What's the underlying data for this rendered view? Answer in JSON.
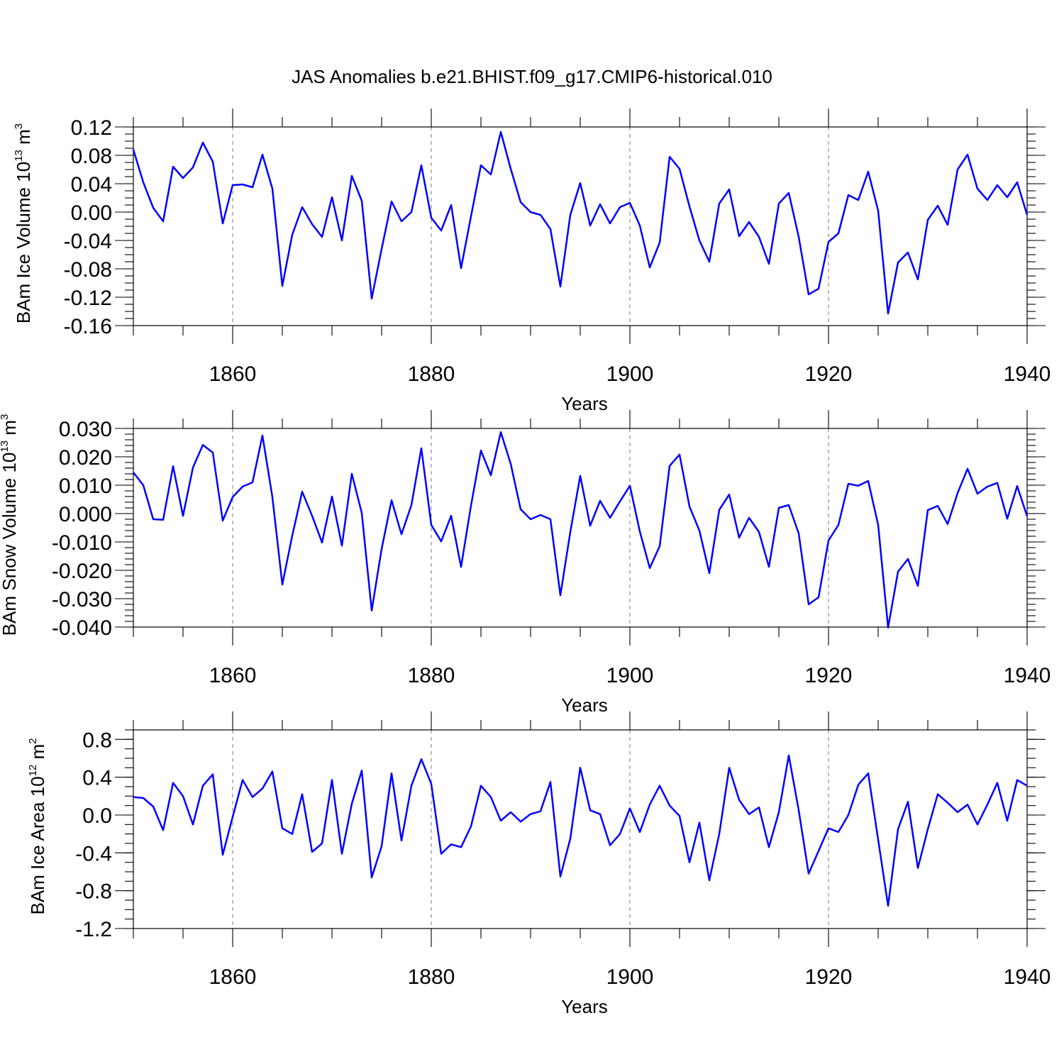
{
  "title": "JAS Anomalies b.e21.BHIST.f09_g17.CMIP6-historical.010",
  "colors": {
    "line": "#0000ff",
    "axis": "#000000",
    "grid": "#777777"
  },
  "chart_data": [
    {
      "type": "line",
      "ylabel_base": "BAm Ice Volume 10",
      "ylabel_exp": "13",
      "ylabel_unit": " m",
      "ylabel_unit_exp": "3",
      "xlabel": "Years",
      "xlim": [
        1850,
        1940
      ],
      "ylim": [
        -0.16,
        0.12
      ],
      "yticks": [
        -0.16,
        -0.12,
        -0.08,
        -0.04,
        0.0,
        0.04,
        0.08,
        0.12
      ],
      "ytick_labels": [
        "-0.16",
        "-0.12",
        "-0.08",
        "-0.04",
        "0.00",
        "0.04",
        "0.08",
        "0.12"
      ],
      "yminor_step": 0.01,
      "xticks": [
        1860,
        1880,
        1900,
        1920,
        1940
      ],
      "xtick_labels": [
        "1860",
        "1880",
        "1900",
        "1920",
        "1940"
      ],
      "xgrid": [
        1860,
        1880,
        1900,
        1920
      ],
      "x_start": 1850,
      "series": [
        {
          "name": "BAm Ice Volume",
          "values": [
            0.088,
            0.042,
            0.006,
            -0.013,
            0.064,
            0.048,
            0.063,
            0.098,
            0.071,
            -0.016,
            0.038,
            0.039,
            0.035,
            0.081,
            0.033,
            -0.104,
            -0.032,
            0.007,
            -0.017,
            -0.035,
            0.021,
            -0.04,
            0.051,
            0.016,
            -0.122,
            -0.052,
            0.015,
            -0.013,
            0.0,
            0.066,
            -0.008,
            -0.026,
            0.01,
            -0.079,
            -0.006,
            0.066,
            0.053,
            0.113,
            0.061,
            0.014,
            0.0,
            -0.004,
            -0.024,
            -0.105,
            -0.004,
            0.041,
            -0.019,
            0.011,
            -0.016,
            0.007,
            0.013,
            -0.019,
            -0.078,
            -0.043,
            0.078,
            0.061,
            0.008,
            -0.04,
            -0.07,
            0.012,
            0.032,
            -0.034,
            -0.014,
            -0.035,
            -0.073,
            0.012,
            0.027,
            -0.035,
            -0.116,
            -0.108,
            -0.042,
            -0.03,
            0.024,
            0.017,
            0.057,
            0.002,
            -0.143,
            -0.071,
            -0.057,
            -0.095,
            -0.011,
            0.009,
            -0.018,
            0.06,
            0.081,
            0.033,
            0.017,
            0.038,
            0.021,
            0.042,
            -0.004
          ]
        }
      ]
    },
    {
      "type": "line",
      "ylabel_base": "BAm Snow Volume 10",
      "ylabel_exp": "13",
      "ylabel_unit": " m",
      "ylabel_unit_exp": "3",
      "xlabel": "Years",
      "xlim": [
        1850,
        1940
      ],
      "ylim": [
        -0.04,
        0.03
      ],
      "yticks": [
        -0.04,
        -0.03,
        -0.02,
        -0.01,
        0.0,
        0.01,
        0.02,
        0.03
      ],
      "ytick_labels": [
        "-0.040",
        "-0.030",
        "-0.020",
        "-0.010",
        "0.000",
        "0.010",
        "0.020",
        "0.030"
      ],
      "yminor_step": 0.002,
      "xticks": [
        1860,
        1880,
        1900,
        1920,
        1940
      ],
      "xtick_labels": [
        "1860",
        "1880",
        "1900",
        "1920",
        "1940"
      ],
      "xgrid": [
        1860,
        1880,
        1900,
        1920
      ],
      "x_start": 1850,
      "series": [
        {
          "name": "BAm Snow Volume",
          "values": [
            0.0145,
            0.01,
            -0.002,
            -0.0022,
            0.0167,
            -0.0008,
            0.0162,
            0.0242,
            0.0215,
            -0.0025,
            0.0058,
            0.0095,
            0.011,
            0.0275,
            0.0058,
            -0.025,
            -0.0078,
            0.0077,
            -0.0008,
            -0.0102,
            0.006,
            -0.0113,
            0.014,
            0.0002,
            -0.0342,
            -0.0125,
            0.0047,
            -0.0073,
            0.003,
            0.023,
            -0.004,
            -0.0098,
            -0.0008,
            -0.0188,
            0.0028,
            0.0222,
            0.0135,
            0.0287,
            0.0175,
            0.0015,
            -0.002,
            -0.0005,
            -0.002,
            -0.0288,
            -0.0065,
            0.0133,
            -0.0043,
            0.0045,
            -0.0015,
            0.0043,
            0.0098,
            -0.0063,
            -0.0192,
            -0.0115,
            0.0168,
            0.0208,
            0.0025,
            -0.006,
            -0.021,
            0.0013,
            0.0067,
            -0.0085,
            -0.0015,
            -0.0065,
            -0.0188,
            0.002,
            0.003,
            -0.007,
            -0.032,
            -0.0295,
            -0.0095,
            -0.004,
            0.0105,
            0.0098,
            0.0115,
            -0.004,
            -0.0402,
            -0.0205,
            -0.016,
            -0.0255,
            0.0012,
            0.0027,
            -0.0037,
            0.0072,
            0.0158,
            0.007,
            0.0095,
            0.0108,
            -0.0018,
            0.0097,
            -0.001
          ]
        }
      ]
    },
    {
      "type": "line",
      "ylabel_base": "BAm Ice Area 10",
      "ylabel_exp": "12",
      "ylabel_unit": " m",
      "ylabel_unit_exp": "2",
      "xlabel": "Years",
      "xlim": [
        1850,
        1940
      ],
      "ylim": [
        -1.2,
        0.9
      ],
      "yticks": [
        -1.2,
        -0.8,
        -0.4,
        0.0,
        0.4,
        0.8
      ],
      "ytick_labels": [
        "-1.2",
        "-0.8",
        "-0.4",
        "0.0",
        "0.4",
        "0.8"
      ],
      "yminor_step": 0.1,
      "xticks": [
        1860,
        1880,
        1900,
        1920,
        1940
      ],
      "xtick_labels": [
        "1860",
        "1880",
        "1900",
        "1920",
        "1940"
      ],
      "xgrid": [
        1860,
        1880,
        1900,
        1920
      ],
      "x_start": 1850,
      "series": [
        {
          "name": "BAm Ice Area",
          "values": [
            0.19,
            0.18,
            0.09,
            -0.16,
            0.34,
            0.2,
            -0.1,
            0.31,
            0.43,
            -0.42,
            -0.02,
            0.37,
            0.19,
            0.28,
            0.46,
            -0.14,
            -0.2,
            0.22,
            -0.39,
            -0.3,
            0.37,
            -0.41,
            0.12,
            0.47,
            -0.66,
            -0.33,
            0.44,
            -0.27,
            0.31,
            0.59,
            0.33,
            -0.41,
            -0.31,
            -0.34,
            -0.12,
            0.31,
            0.19,
            -0.06,
            0.03,
            -0.07,
            0.01,
            0.04,
            0.35,
            -0.65,
            -0.25,
            0.5,
            0.05,
            0.01,
            -0.32,
            -0.2,
            0.07,
            -0.18,
            0.11,
            0.31,
            0.1,
            -0.01,
            -0.5,
            -0.08,
            -0.69,
            -0.2,
            0.5,
            0.16,
            0.01,
            0.08,
            -0.34,
            0.03,
            0.63,
            0.05,
            -0.62,
            -0.38,
            -0.14,
            -0.18,
            0.0,
            0.32,
            0.44,
            -0.26,
            -0.96,
            -0.15,
            0.14,
            -0.56,
            -0.15,
            0.22,
            0.13,
            0.03,
            0.11,
            -0.1,
            0.11,
            0.34,
            -0.06,
            0.37,
            0.31
          ]
        }
      ]
    }
  ]
}
